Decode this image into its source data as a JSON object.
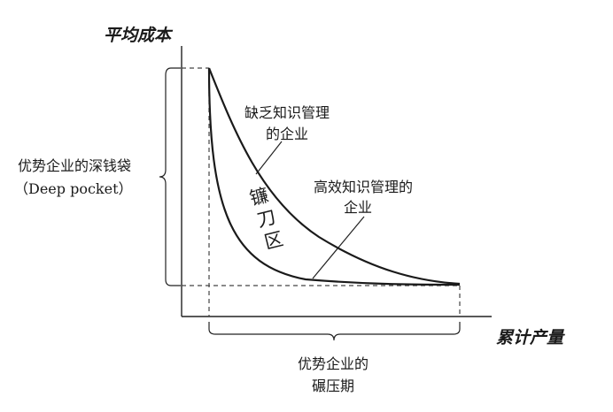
{
  "axis_y_title": "平均成本",
  "axis_x_title": "累计产量",
  "curve_without_km": {
    "line1": "缺乏知识管理",
    "line2": "的企业"
  },
  "curve_with_km": {
    "line1": "高效知识管理的",
    "line2": "企业"
  },
  "deep_pocket": {
    "line1": "优势企业的深钱袋",
    "line2": "（Deep pocket）"
  },
  "crush_period": {
    "line1": "优势企业的",
    "line2": "碾压期"
  },
  "zone_label": [
    "镰",
    "刀",
    "区"
  ]
}
